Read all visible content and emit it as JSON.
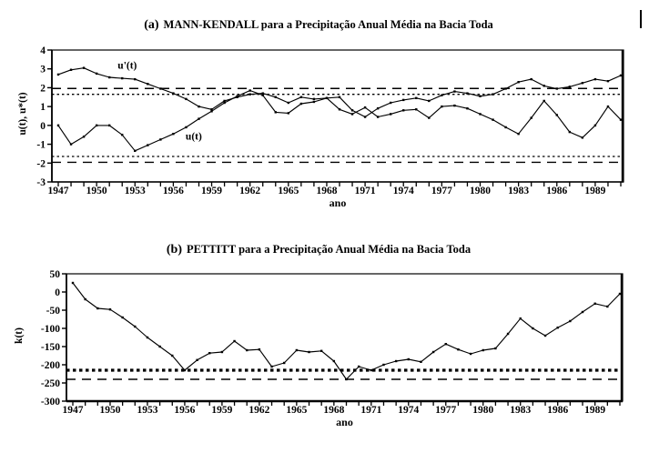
{
  "chart_data": [
    {
      "id": "a",
      "type": "line",
      "title_prefix": "(a)",
      "title": "MANN-KENDALL para a Precipitação Anual Média na Bacia Toda",
      "xlabel": "ano",
      "ylabel": "u(t), u*(t)",
      "ylim": [
        -3,
        4
      ],
      "yticks": [
        4,
        3,
        2,
        1,
        0,
        -1,
        -2,
        -3
      ],
      "xtick_labels": [
        1947,
        1950,
        1953,
        1956,
        1959,
        1962,
        1965,
        1968,
        1971,
        1974,
        1977,
        1980,
        1983,
        1986,
        1989
      ],
      "grid": false,
      "legend_position": "none",
      "line_color": "#000000",
      "years": [
        1947,
        1948,
        1949,
        1950,
        1951,
        1952,
        1953,
        1954,
        1955,
        1956,
        1957,
        1958,
        1959,
        1960,
        1961,
        1962,
        1963,
        1964,
        1965,
        1966,
        1967,
        1968,
        1969,
        1970,
        1971,
        1972,
        1973,
        1974,
        1975,
        1976,
        1977,
        1978,
        1979,
        1980,
        1981,
        1982,
        1983,
        1984,
        1985,
        1986,
        1987,
        1988,
        1989,
        1990,
        1991
      ],
      "series": [
        {
          "name": "u'(t)",
          "values": [
            2.7,
            2.95,
            3.05,
            2.75,
            2.55,
            2.5,
            2.45,
            2.2,
            1.95,
            1.7,
            1.4,
            1.0,
            0.85,
            1.3,
            1.5,
            1.65,
            1.7,
            1.5,
            1.2,
            1.5,
            1.4,
            1.45,
            0.85,
            0.6,
            0.95,
            0.45,
            0.6,
            0.8,
            0.85,
            0.4,
            1.0,
            1.05,
            0.9,
            0.6,
            0.3,
            -0.1,
            -0.45,
            0.4,
            1.3,
            0.55,
            -0.35,
            -0.65,
            0.0,
            1.0,
            0.3
          ]
        },
        {
          "name": "u(t)",
          "values": [
            0.0,
            -1.0,
            -0.6,
            0.0,
            0.0,
            -0.5,
            -1.35,
            -1.05,
            -0.75,
            -0.45,
            -0.1,
            0.35,
            0.75,
            1.2,
            1.55,
            1.85,
            1.6,
            0.7,
            0.65,
            1.15,
            1.25,
            1.45,
            1.5,
            0.8,
            0.45,
            0.9,
            1.2,
            1.35,
            1.45,
            1.3,
            1.6,
            1.8,
            1.7,
            1.55,
            1.65,
            1.95,
            2.3,
            2.45,
            2.1,
            1.95,
            2.05,
            2.25,
            2.45,
            2.35,
            2.65
          ]
        }
      ],
      "reference_lines": [
        {
          "y": 1.96,
          "style": "long-dash"
        },
        {
          "y": 1.65,
          "style": "dot"
        },
        {
          "y": -1.65,
          "style": "dot"
        },
        {
          "y": -1.96,
          "style": "long-dash"
        }
      ],
      "annotations": [
        {
          "text": "u'(t)",
          "x": 1952.4,
          "y": 3.0
        },
        {
          "text": "u(t)",
          "x": 1957.6,
          "y": -0.75
        }
      ]
    },
    {
      "id": "b",
      "type": "line",
      "title_prefix": "(b)",
      "title": "PETTITT para a Precipitação Anual Média na Bacia Toda",
      "xlabel": "ano",
      "ylabel": "k(t)",
      "ylim": [
        -300,
        50
      ],
      "yticks": [
        50,
        0,
        -50,
        -100,
        -150,
        -200,
        -250,
        -300
      ],
      "xtick_labels": [
        1947,
        1950,
        1953,
        1956,
        1959,
        1962,
        1965,
        1968,
        1971,
        1974,
        1977,
        1980,
        1983,
        1986,
        1989
      ],
      "grid": false,
      "legend_position": "none",
      "line_color": "#000000",
      "years": [
        1947,
        1948,
        1949,
        1950,
        1951,
        1952,
        1953,
        1954,
        1955,
        1956,
        1957,
        1958,
        1959,
        1960,
        1961,
        1962,
        1963,
        1964,
        1965,
        1966,
        1967,
        1968,
        1969,
        1970,
        1971,
        1972,
        1973,
        1974,
        1975,
        1976,
        1977,
        1978,
        1979,
        1980,
        1981,
        1982,
        1983,
        1984,
        1985,
        1986,
        1987,
        1988,
        1989,
        1990,
        1991
      ],
      "series": [
        {
          "name": "k(t)",
          "values": [
            25,
            -20,
            -45,
            -48,
            -70,
            -95,
            -125,
            -150,
            -175,
            -215,
            -187,
            -168,
            -165,
            -135,
            -160,
            -158,
            -205,
            -195,
            -160,
            -165,
            -162,
            -190,
            -240,
            -205,
            -215,
            -200,
            -190,
            -185,
            -192,
            -165,
            -143,
            -158,
            -170,
            -160,
            -155,
            -115,
            -73,
            -100,
            -120,
            -98,
            -80,
            -55,
            -32,
            -40,
            -5
          ]
        }
      ],
      "reference_lines": [
        {
          "y": -215,
          "style": "bold-dot"
        },
        {
          "y": -240,
          "style": "long-dash"
        }
      ],
      "annotations": []
    }
  ]
}
